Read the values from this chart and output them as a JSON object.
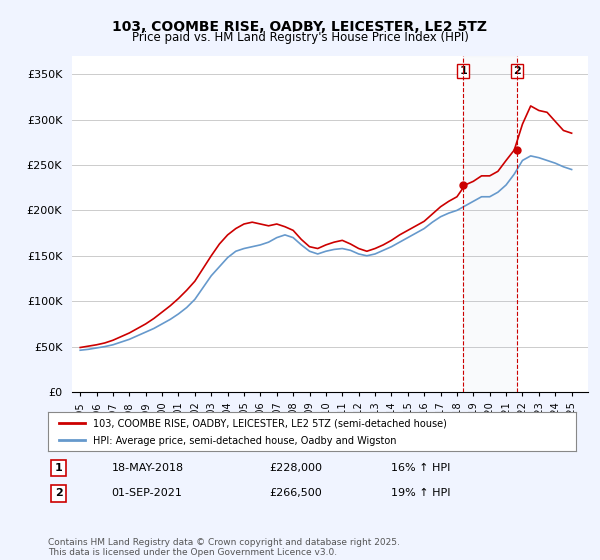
{
  "title": "103, COOMBE RISE, OADBY, LEICESTER, LE2 5TZ",
  "subtitle": "Price paid vs. HM Land Registry's House Price Index (HPI)",
  "ylabel_ticks": [
    "£0",
    "£50K",
    "£100K",
    "£150K",
    "£200K",
    "£250K",
    "£300K",
    "£350K"
  ],
  "ylim": [
    0,
    370000
  ],
  "xlim_start": 1995,
  "xlim_end": 2026,
  "line1_color": "#cc0000",
  "line2_color": "#6699cc",
  "marker1_date": 2018.38,
  "marker1_value": 228000,
  "marker1_label": "1",
  "marker2_date": 2021.67,
  "marker2_value": 266500,
  "marker2_label": "2",
  "vline1_x": 2018.38,
  "vline2_x": 2021.67,
  "legend_line1": "103, COOMBE RISE, OADBY, LEICESTER, LE2 5TZ (semi-detached house)",
  "legend_line2": "HPI: Average price, semi-detached house, Oadby and Wigston",
  "annotation1_date": "18-MAY-2018",
  "annotation1_price": "£228,000",
  "annotation1_hpi": "16% ↑ HPI",
  "annotation2_date": "01-SEP-2021",
  "annotation2_price": "£266,500",
  "annotation2_hpi": "19% ↑ HPI",
  "footer": "Contains HM Land Registry data © Crown copyright and database right 2025.\nThis data is licensed under the Open Government Licence v3.0.",
  "bg_color": "#f0f4ff",
  "plot_bg": "#ffffff"
}
